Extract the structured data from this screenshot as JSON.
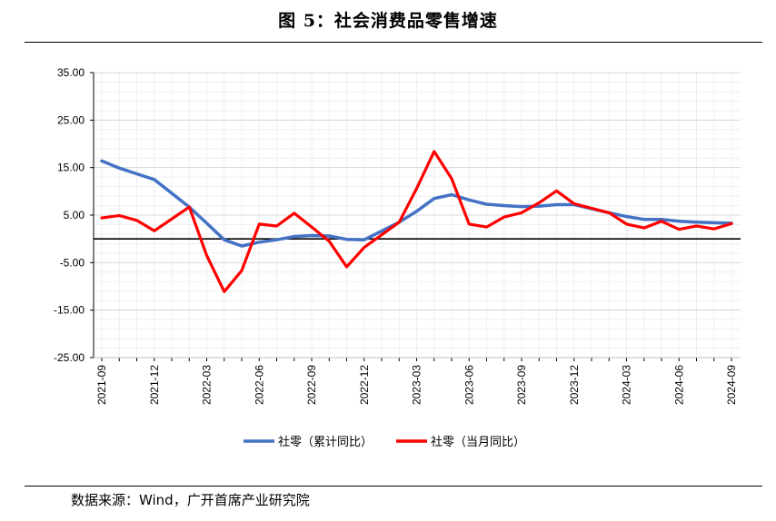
{
  "title": "图 5：社会消费品零售增速",
  "source": "数据来源：Wind，广开首席产业研究院",
  "chart_data": {
    "type": "line",
    "x": [
      "2021-09",
      "2021-10",
      "2021-11",
      "2021-12",
      "2022-01",
      "2022-02",
      "2022-03",
      "2022-04",
      "2022-05",
      "2022-06",
      "2022-07",
      "2022-08",
      "2022-09",
      "2022-10",
      "2022-11",
      "2022-12",
      "2023-01",
      "2023-02",
      "2023-03",
      "2023-04",
      "2023-05",
      "2023-06",
      "2023-07",
      "2023-08",
      "2023-09",
      "2023-10",
      "2023-11",
      "2023-12",
      "2024-01",
      "2024-02",
      "2024-03",
      "2024-04",
      "2024-05",
      "2024-06",
      "2024-07",
      "2024-08",
      "2024-09"
    ],
    "x_tick_labels": [
      "2021-09",
      "2021-12",
      "2022-03",
      "2022-06",
      "2022-09",
      "2022-12",
      "2023-03",
      "2023-06",
      "2023-09",
      "2023-12",
      "2024-03",
      "2024-06",
      "2024-09"
    ],
    "ylim": [
      -25,
      35
    ],
    "y_ticks": [
      "35.00",
      "25.00",
      "15.00",
      "5.00",
      "-5.00",
      "-15.00",
      "-25.00"
    ],
    "y_tick_values": [
      35,
      25,
      15,
      5,
      -5,
      -15,
      -25
    ],
    "grid": true,
    "legend_position": "bottom",
    "series": [
      {
        "name": "社零（累计同比）",
        "color": "#4472C4",
        "values": [
          16.4,
          14.9,
          13.7,
          12.5,
          null,
          6.7,
          3.3,
          -0.2,
          -1.5,
          -0.7,
          -0.2,
          0.5,
          0.7,
          0.6,
          -0.1,
          -0.2,
          null,
          3.5,
          5.8,
          8.5,
          9.3,
          8.2,
          7.3,
          7.0,
          6.8,
          6.9,
          7.2,
          7.2,
          null,
          5.5,
          4.7,
          4.1,
          4.1,
          3.7,
          3.5,
          3.4,
          3.3
        ],
        "connect_gaps": true
      },
      {
        "name": "社零（当月同比）",
        "color": "#FF0000",
        "values": [
          4.4,
          4.9,
          3.9,
          1.7,
          null,
          6.7,
          -3.5,
          -11.1,
          -6.7,
          3.1,
          2.7,
          5.4,
          2.5,
          -0.5,
          -5.9,
          -1.8,
          null,
          3.5,
          10.6,
          18.4,
          12.7,
          3.1,
          2.5,
          4.6,
          5.5,
          7.6,
          10.1,
          7.4,
          null,
          5.5,
          3.1,
          2.3,
          3.7,
          2.0,
          2.7,
          2.1,
          3.2
        ],
        "connect_gaps": true
      }
    ]
  }
}
